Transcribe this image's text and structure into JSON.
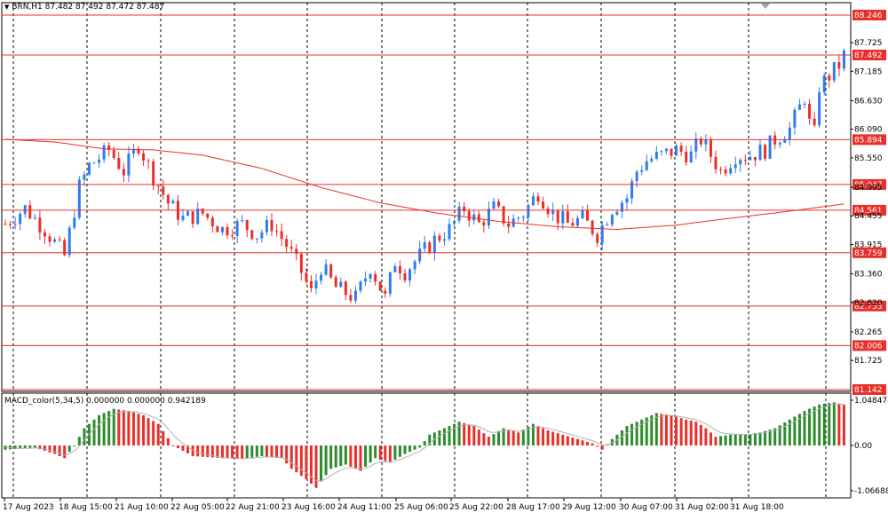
{
  "header": {
    "symbol_info": "BRN,H1  87.482 87.492 87.472 87.487",
    "macd_info": "MACD_color(5,34,5) 0.000000 0.000000 0.942189"
  },
  "colors": {
    "up": "#2E7CF0",
    "down": "#E8302A",
    "level": "#E8302A",
    "ma": "#E8302A",
    "grid": "#000000",
    "hist_up": "#2E8B2E",
    "hist_down": "#E8302A",
    "signal": "#B0B0B0"
  },
  "chart_data": [
    {
      "type": "candlestick",
      "name": "price",
      "y_ticks": [
        "87.725",
        "87.185",
        "86.630",
        "86.090",
        "85.550",
        "84.995",
        "84.455",
        "83.915",
        "83.360",
        "82.820",
        "82.265",
        "81.725"
      ],
      "ylim": [
        81.142,
        88.48
      ],
      "levels": [
        "88.246",
        "87.492",
        "85.894",
        "85.047",
        "84.561",
        "83.759",
        "82.753",
        "82.006",
        "81.142"
      ],
      "current_price": "87.487",
      "x_labels": [
        "17 Aug 2023",
        "18 Aug 15:00",
        "21 Aug 10:00",
        "22 Aug 05:00",
        "22 Aug 21:00",
        "23 Aug 16:00",
        "24 Aug 11:00",
        "25 Aug 06:00",
        "25 Aug 22:00",
        "28 Aug 17:00",
        "29 Aug 12:00",
        "30 Aug 07:00",
        "31 Aug 02:00",
        "31 Aug 18:00"
      ],
      "close_path": [
        [
          0,
          84.3
        ],
        [
          4,
          84.6
        ],
        [
          8,
          84.2
        ],
        [
          12,
          83.7
        ],
        [
          15,
          85.0
        ],
        [
          17,
          85.4
        ],
        [
          21,
          85.7
        ],
        [
          24,
          85.3
        ],
        [
          27,
          85.8
        ],
        [
          30,
          85.2
        ],
        [
          33,
          84.7
        ],
        [
          36,
          84.4
        ],
        [
          40,
          84.5
        ],
        [
          44,
          84.2
        ],
        [
          48,
          84.3
        ],
        [
          51,
          84.1
        ],
        [
          54,
          84.3
        ],
        [
          57,
          83.9
        ],
        [
          60,
          83.4
        ],
        [
          62,
          83.0
        ],
        [
          64,
          83.5
        ],
        [
          67,
          83.1
        ],
        [
          71,
          82.9
        ],
        [
          74,
          83.5
        ],
        [
          77,
          82.9
        ],
        [
          79,
          83.6
        ],
        [
          81,
          83.4
        ],
        [
          84,
          83.7
        ],
        [
          87,
          84.0
        ],
        [
          90,
          84.2
        ],
        [
          93,
          84.6
        ],
        [
          96,
          84.3
        ],
        [
          99,
          84.6
        ],
        [
          102,
          84.3
        ],
        [
          105,
          84.5
        ],
        [
          108,
          84.9
        ],
        [
          111,
          84.5
        ],
        [
          114,
          84.3
        ],
        [
          117,
          84.4
        ],
        [
          120,
          84.1
        ],
        [
          123,
          84.6
        ],
        [
          126,
          84.8
        ],
        [
          128,
          85.3
        ],
        [
          130,
          85.5
        ],
        [
          133,
          85.6
        ],
        [
          136,
          85.7
        ],
        [
          139,
          85.6
        ],
        [
          141,
          85.9
        ],
        [
          143,
          85.6
        ],
        [
          145,
          85.3
        ],
        [
          148,
          85.6
        ],
        [
          151,
          85.6
        ],
        [
          154,
          85.7
        ],
        [
          156,
          85.9
        ],
        [
          159,
          86.1
        ],
        [
          161,
          86.5
        ],
        [
          162,
          86.7
        ],
        [
          163,
          86.2
        ],
        [
          164,
          86.0
        ],
        [
          165,
          86.9
        ],
        [
          167,
          87.1
        ],
        [
          169,
          87.3
        ],
        [
          170,
          87.487
        ]
      ],
      "moving_average": [
        [
          0,
          85.9
        ],
        [
          10,
          85.85
        ],
        [
          20,
          85.72
        ],
        [
          30,
          85.7
        ],
        [
          40,
          85.6
        ],
        [
          52,
          85.35
        ],
        [
          64,
          84.99
        ],
        [
          76,
          84.7
        ],
        [
          88,
          84.5
        ],
        [
          100,
          84.35
        ],
        [
          112,
          84.25
        ],
        [
          124,
          84.2
        ],
        [
          136,
          84.28
        ],
        [
          146,
          84.4
        ],
        [
          156,
          84.51
        ],
        [
          162,
          84.58
        ],
        [
          170,
          84.68
        ]
      ]
    },
    {
      "type": "histogram",
      "name": "MACD_color(5,34,5)",
      "y_ticks": [
        "1.048474",
        "0.00",
        "-1.06688"
      ],
      "ylim": [
        -1.06688,
        1.048474
      ],
      "bar_path": [
        [
          0,
          -0.1
        ],
        [
          6,
          -0.05
        ],
        [
          10,
          -0.2
        ],
        [
          12,
          -0.3
        ],
        [
          14,
          0.0
        ],
        [
          16,
          0.4
        ],
        [
          19,
          0.7
        ],
        [
          22,
          0.85
        ],
        [
          25,
          0.8
        ],
        [
          28,
          0.7
        ],
        [
          31,
          0.5
        ],
        [
          34,
          0.0
        ],
        [
          38,
          -0.25
        ],
        [
          44,
          -0.3
        ],
        [
          48,
          -0.32
        ],
        [
          52,
          -0.25
        ],
        [
          56,
          -0.3
        ],
        [
          58,
          -0.55
        ],
        [
          61,
          -0.8
        ],
        [
          63,
          -1.0
        ],
        [
          66,
          -0.55
        ],
        [
          69,
          -0.45
        ],
        [
          72,
          -0.6
        ],
        [
          75,
          -0.3
        ],
        [
          78,
          -0.4
        ],
        [
          81,
          -0.2
        ],
        [
          84,
          -0.05
        ],
        [
          86,
          0.25
        ],
        [
          89,
          0.4
        ],
        [
          92,
          0.55
        ],
        [
          95,
          0.45
        ],
        [
          98,
          0.2
        ],
        [
          101,
          0.4
        ],
        [
          104,
          0.3
        ],
        [
          107,
          0.5
        ],
        [
          110,
          0.35
        ],
        [
          113,
          0.25
        ],
        [
          116,
          0.15
        ],
        [
          119,
          0.05
        ],
        [
          121,
          -0.1
        ],
        [
          123,
          0.15
        ],
        [
          126,
          0.45
        ],
        [
          129,
          0.6
        ],
        [
          132,
          0.75
        ],
        [
          135,
          0.7
        ],
        [
          138,
          0.6
        ],
        [
          140,
          0.55
        ],
        [
          142,
          0.4
        ],
        [
          144,
          0.2
        ],
        [
          147,
          0.25
        ],
        [
          150,
          0.25
        ],
        [
          153,
          0.3
        ],
        [
          156,
          0.4
        ],
        [
          159,
          0.6
        ],
        [
          162,
          0.8
        ],
        [
          165,
          0.95
        ],
        [
          168,
          1.0
        ],
        [
          170,
          0.94
        ]
      ]
    }
  ]
}
